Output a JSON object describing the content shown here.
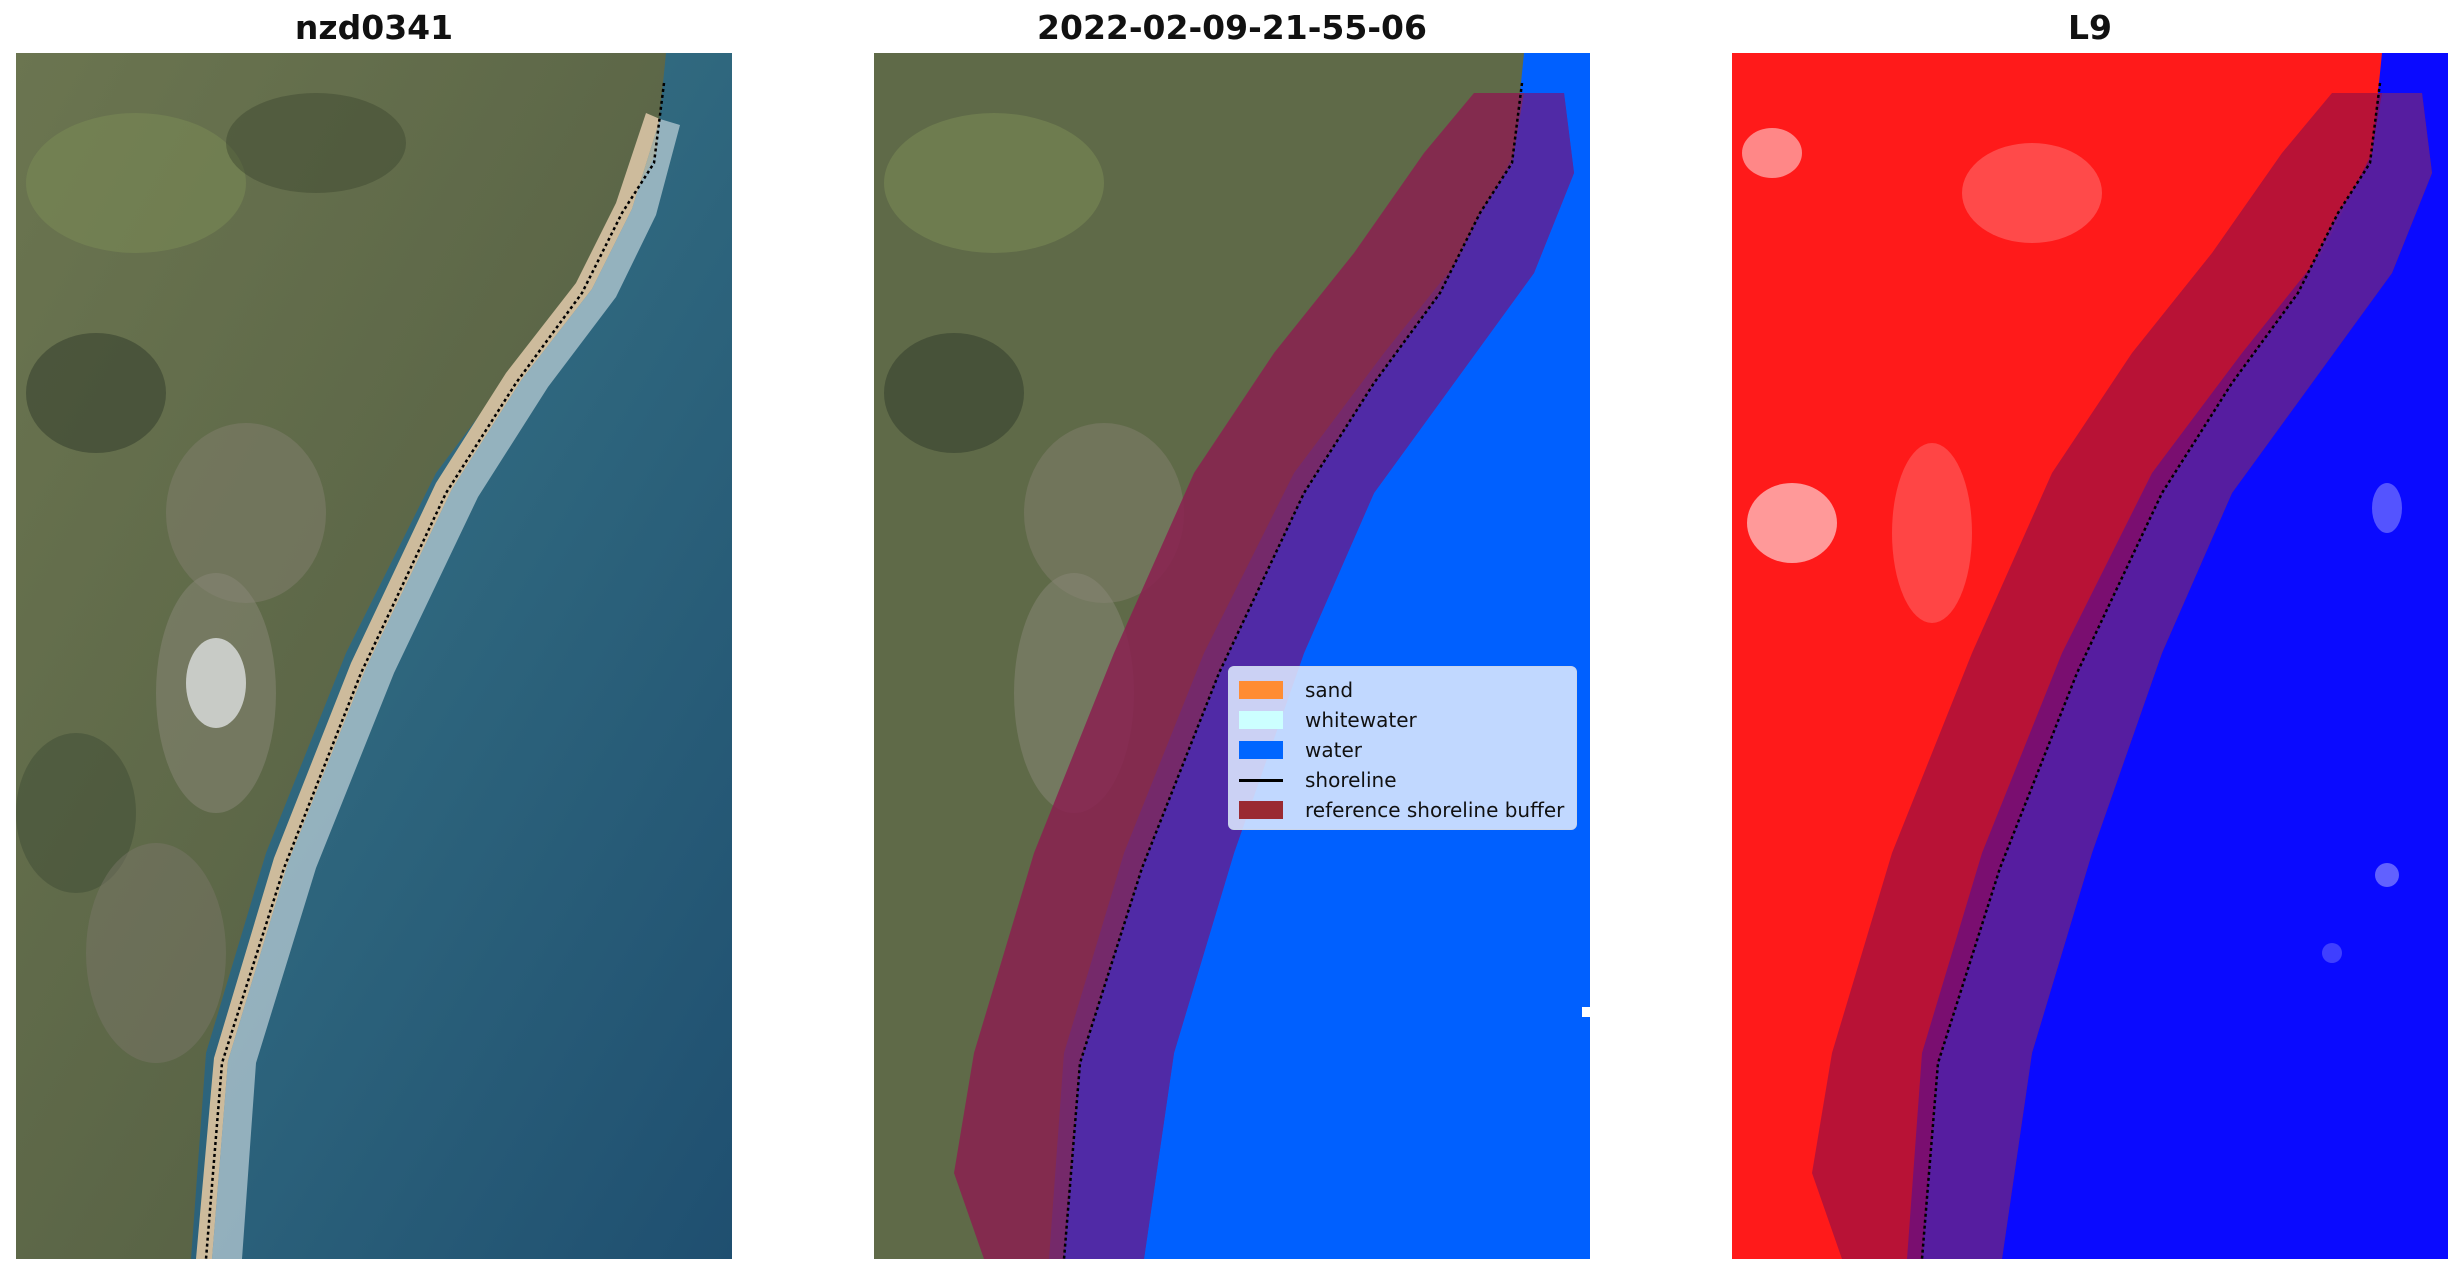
{
  "panels": [
    {
      "title": "nzd0341"
    },
    {
      "title": "2022-02-09-21-55-06"
    },
    {
      "title": "L9"
    }
  ],
  "legend": [
    {
      "label": "sand",
      "color": "#ff8c33",
      "kind": "patch"
    },
    {
      "label": "whitewater",
      "color": "#ccffff",
      "kind": "patch"
    },
    {
      "label": "water",
      "color": "#0066ff",
      "kind": "patch"
    },
    {
      "label": "shoreline",
      "color": "#000000",
      "kind": "line"
    },
    {
      "label": "reference shoreline buffer",
      "color": "#9a2a32",
      "kind": "patch"
    }
  ],
  "colors": {
    "land": "#5f6a48",
    "sea": "#2c6479",
    "sand": "#c9b89a",
    "surf": "#dfe9ee",
    "water_class": "#0060ff",
    "buffer": "#8a2040",
    "index_high": "#ff1a1a",
    "index_low": "#0a0aff"
  }
}
